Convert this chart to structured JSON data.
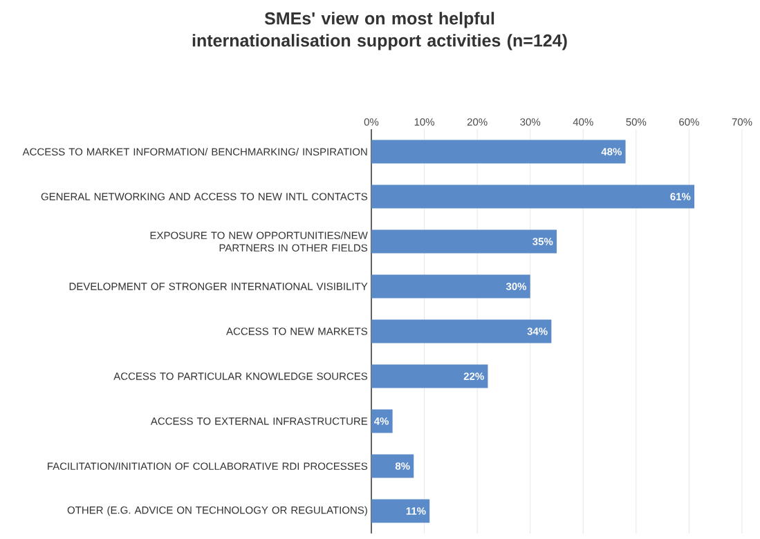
{
  "chart_data": {
    "type": "bar",
    "orientation": "horizontal",
    "title": "SMEs' view on most helpful internationalisation support activities (n=124)",
    "categories": [
      "ACCESS TO MARKET INFORMATION/ BENCHMARKING/ INSPIRATION",
      "GENERAL NETWORKING AND ACCESS TO NEW INTL CONTACTS",
      "EXPOSURE TO NEW OPPORTUNITIES/NEW PARTNERS IN OTHER FIELDS",
      "DEVELOPMENT OF STRONGER INTERNATIONAL VISIBILITY",
      "ACCESS TO NEW MARKETS",
      "ACCESS TO PARTICULAR KNOWLEDGE SOURCES",
      "ACCESS TO EXTERNAL INFRASTRUCTURE",
      "FACILITATION/INITIATION OF COLLABORATIVE RDI PROCESSES",
      "OTHER (E.G. ADVICE ON TECHNOLOGY OR REGULATIONS)"
    ],
    "values": [
      48,
      61,
      35,
      30,
      34,
      22,
      4,
      8,
      11
    ],
    "value_labels": [
      "48%",
      "61%",
      "35%",
      "30%",
      "34%",
      "22%",
      "4%",
      "8%",
      "11%"
    ],
    "color": "#5b8ac8",
    "xlim": [
      0,
      70
    ],
    "xticks": [
      {
        "value": 0,
        "label": "0%"
      },
      {
        "value": 10,
        "label": "10%"
      },
      {
        "value": 20,
        "label": "20%"
      },
      {
        "value": 30,
        "label": "30%"
      },
      {
        "value": 40,
        "label": "40%"
      },
      {
        "value": 50,
        "label": "50%"
      },
      {
        "value": 60,
        "label": "60%"
      },
      {
        "value": 70,
        "label": "70%"
      }
    ],
    "grid": "x"
  }
}
